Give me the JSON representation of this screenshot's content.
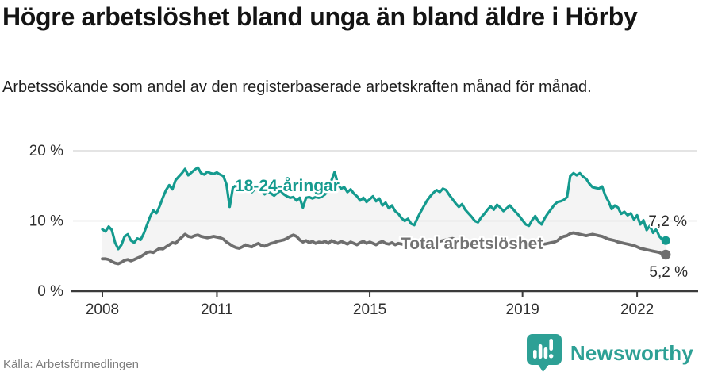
{
  "header": {
    "title": "Högre arbetslöshet bland unga än bland äldre i Hörby",
    "subtitle": "Arbetssökande som andel av den registerbaserade arbetskraften månad för månad."
  },
  "footer": {
    "source": "Källa: Arbetsförmedlingen",
    "brand": "Newsworthy"
  },
  "colors": {
    "young_line": "#149a8e",
    "total_line": "#6e6e6e",
    "band_fill": "#f4f4f4",
    "grid": "#dcdcdc",
    "axis": "#3b3b3b",
    "tick_text": "#2f2f2f",
    "annotation_text": "#2b2b2b",
    "brand_teal": "#2da095"
  },
  "chart_data": {
    "type": "line",
    "title": "Högre arbetslöshet bland unga än bland äldre i Hörby",
    "subtitle": "Arbetssökande som andel av den registerbaserade arbetskraften månad för månad.",
    "x_unit": "month",
    "x_start": "2008-01",
    "x_end": "2022-10",
    "x_tick_years": [
      2008,
      2011,
      2015,
      2019,
      2022
    ],
    "x_tick_labels": [
      "2008",
      "2011",
      "2015",
      "2019",
      "2022"
    ],
    "y_tick_values": [
      0,
      10,
      20
    ],
    "y_tick_labels": [
      "0 %",
      "10 %",
      "20 %"
    ],
    "ylim": [
      0,
      21
    ],
    "grid": true,
    "legend_position": "inline-labels",
    "band_between_series": true,
    "series": [
      {
        "name": "18-24-åringar",
        "color": "#149a8e",
        "end_label": "7,2 %",
        "end_value": 7.2,
        "values": [
          8.8,
          8.5,
          9.2,
          8.7,
          6.9,
          6.0,
          6.6,
          7.8,
          8.1,
          7.2,
          6.9,
          7.5,
          7.3,
          8.2,
          9.4,
          10.6,
          11.5,
          11.1,
          12.1,
          13.3,
          14.4,
          15.1,
          14.5,
          15.8,
          16.3,
          16.8,
          17.4,
          16.5,
          16.9,
          17.3,
          17.6,
          16.8,
          16.6,
          17.0,
          16.8,
          16.7,
          16.9,
          16.6,
          16.4,
          15.2,
          12.0,
          14.7,
          15.1,
          14.6,
          14.4,
          15.1,
          14.5,
          14.1,
          14.6,
          15.1,
          14.4,
          13.8,
          14.2,
          13.9,
          13.6,
          14.0,
          14.3,
          13.8,
          13.5,
          13.3,
          13.4,
          12.9,
          13.3,
          11.9,
          13.3,
          13.4,
          13.2,
          13.4,
          13.3,
          13.5,
          13.8,
          14.6,
          15.8,
          17.0,
          15.2,
          14.6,
          14.8,
          14.1,
          14.5,
          13.9,
          13.5,
          12.9,
          13.3,
          12.7,
          13.1,
          13.5,
          12.8,
          13.2,
          12.2,
          12.6,
          11.8,
          12.2,
          11.4,
          11.0,
          10.4,
          10.0,
          10.3,
          9.6,
          9.4,
          10.4,
          11.3,
          12.1,
          12.9,
          13.5,
          14.0,
          14.4,
          14.1,
          14.6,
          14.4,
          13.7,
          13.1,
          12.5,
          12.0,
          12.4,
          11.6,
          11.1,
          10.6,
          10.0,
          9.8,
          10.5,
          11.0,
          11.6,
          12.1,
          11.6,
          12.3,
          11.9,
          11.4,
          11.8,
          12.2,
          11.7,
          11.2,
          10.7,
          10.1,
          9.5,
          9.3,
          10.1,
          10.7,
          9.9,
          9.5,
          10.4,
          11.1,
          11.7,
          12.3,
          12.7,
          12.8,
          13.0,
          13.4,
          16.4,
          16.8,
          16.5,
          16.8,
          16.3,
          16.0,
          15.3,
          14.8,
          14.7,
          14.6,
          14.9,
          13.6,
          12.8,
          11.7,
          12.2,
          11.9,
          11.0,
          11.3,
          10.8,
          11.1,
          10.2,
          10.8,
          9.5,
          10.1,
          8.7,
          9.3,
          8.3,
          8.8,
          7.8,
          7.3,
          7.2
        ]
      },
      {
        "name": "Total arbetslöshet",
        "color": "#6e6e6e",
        "end_label": "5,2 %",
        "end_value": 5.2,
        "values": [
          4.6,
          4.6,
          4.5,
          4.2,
          4.0,
          3.9,
          4.1,
          4.4,
          4.5,
          4.3,
          4.5,
          4.7,
          4.9,
          5.2,
          5.5,
          5.6,
          5.5,
          5.8,
          6.1,
          6.0,
          6.3,
          6.6,
          6.9,
          6.8,
          7.3,
          7.7,
          8.1,
          7.8,
          7.7,
          7.9,
          8.0,
          7.8,
          7.7,
          7.6,
          7.7,
          7.8,
          7.7,
          7.6,
          7.4,
          7.0,
          6.7,
          6.4,
          6.2,
          6.1,
          6.3,
          6.6,
          6.4,
          6.3,
          6.6,
          6.8,
          6.5,
          6.4,
          6.6,
          6.8,
          6.9,
          7.1,
          7.2,
          7.3,
          7.5,
          7.8,
          8.0,
          7.8,
          7.3,
          7.0,
          7.2,
          6.9,
          7.1,
          6.8,
          7.0,
          6.9,
          7.1,
          6.8,
          7.2,
          7.0,
          6.8,
          7.1,
          6.9,
          6.7,
          7.0,
          6.8,
          6.6,
          6.9,
          7.1,
          6.8,
          7.0,
          6.8,
          6.6,
          6.9,
          7.1,
          6.8,
          6.7,
          6.9,
          6.6,
          6.8,
          6.7,
          6.6,
          6.7,
          6.8,
          6.6,
          6.5,
          6.6,
          6.8,
          6.9,
          7.0,
          7.1,
          7.2,
          7.1,
          7.2,
          7.3,
          7.4,
          7.5,
          7.3,
          7.2,
          7.1,
          7.0,
          6.9,
          6.8,
          6.7,
          6.8,
          6.9,
          7.0,
          6.9,
          6.8,
          6.7,
          6.6,
          6.7,
          6.6,
          6.5,
          6.6,
          6.7,
          6.6,
          6.7,
          6.6,
          6.5,
          6.4,
          6.5,
          6.6,
          6.7,
          6.8,
          6.7,
          6.8,
          6.9,
          7.0,
          7.2,
          7.6,
          7.8,
          7.9,
          8.2,
          8.3,
          8.2,
          8.1,
          8.0,
          7.9,
          8.0,
          8.1,
          8.0,
          7.9,
          7.8,
          7.6,
          7.4,
          7.3,
          7.2,
          7.0,
          6.9,
          6.8,
          6.7,
          6.6,
          6.5,
          6.3,
          6.1,
          6.0,
          5.9,
          5.8,
          5.7,
          5.6,
          5.5,
          5.3,
          5.2
        ]
      }
    ]
  }
}
